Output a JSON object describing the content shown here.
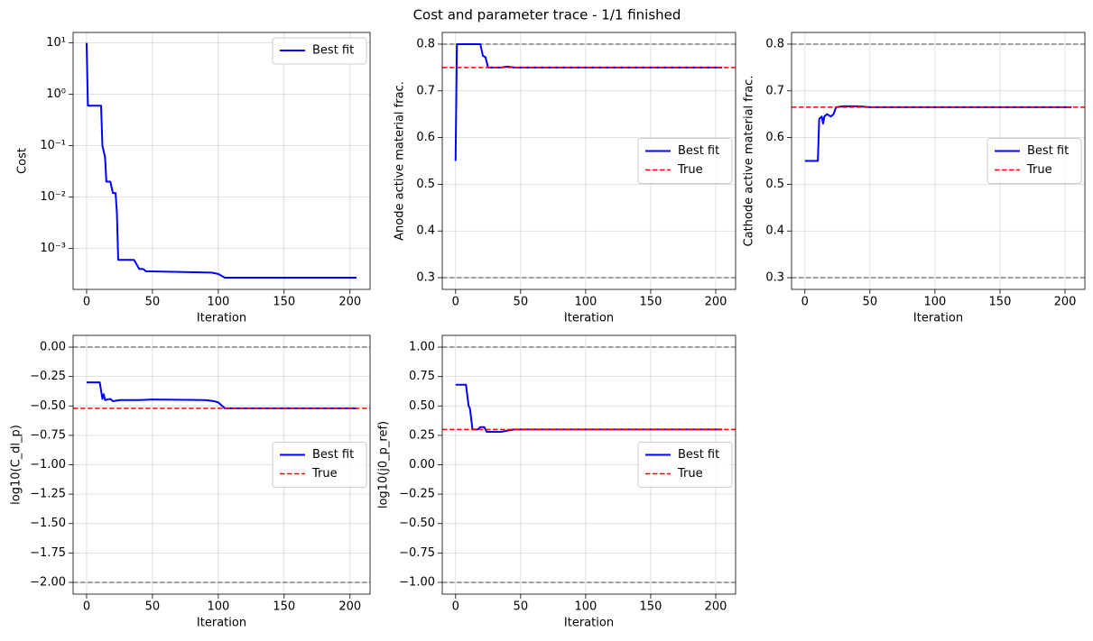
{
  "title": "Cost and parameter trace - 1/1 finished",
  "chart_data": [
    {
      "type": "line",
      "xlabel": "Iteration",
      "ylabel": "Cost",
      "log_y": true,
      "grid": true,
      "legend": "upper right",
      "xlim": [
        -10.25,
        215.25
      ],
      "xticks": [
        0,
        50,
        100,
        150,
        200
      ],
      "ylim": [
        0.00016,
        16
      ],
      "yticks": [
        {
          "value": 0.001,
          "label": "10⁻³"
        },
        {
          "value": 0.01,
          "label": "10⁻²"
        },
        {
          "value": 0.1,
          "label": "10⁻¹"
        },
        {
          "value": 1,
          "label": "10⁰"
        },
        {
          "value": 10,
          "label": "10¹"
        }
      ],
      "series": [
        {
          "name": "Best fit",
          "color": "#0000ff",
          "x": [
            0,
            1,
            11,
            12,
            14,
            15,
            18,
            20,
            22,
            23,
            24,
            36,
            40,
            43,
            45,
            95,
            100,
            105,
            205
          ],
          "values": [
            10,
            0.6,
            0.6,
            0.1,
            0.06,
            0.02,
            0.02,
            0.012,
            0.012,
            0.005,
            0.0006,
            0.0006,
            0.0004,
            0.0004,
            0.00036,
            0.00034,
            0.00032,
            0.00027,
            0.00027
          ]
        }
      ]
    },
    {
      "type": "line",
      "xlabel": "Iteration",
      "ylabel": "Anode active material frac.",
      "grid": true,
      "legend": "center right",
      "xlim": [
        -10.25,
        215.25
      ],
      "xticks": [
        0,
        50,
        100,
        150,
        200
      ],
      "ylim": [
        0.275,
        0.825
      ],
      "yticks": [
        0.3,
        0.4,
        0.5,
        0.6,
        0.7,
        0.8
      ],
      "bounds": [
        0.3,
        0.8
      ],
      "bounds_color": "#808080",
      "series": [
        {
          "name": "Best fit",
          "color": "#0000ff",
          "x": [
            0,
            1,
            19,
            21,
            23,
            25,
            35,
            40,
            45,
            205
          ],
          "values": [
            0.55,
            0.8,
            0.8,
            0.775,
            0.772,
            0.75,
            0.75,
            0.752,
            0.75,
            0.75
          ]
        },
        {
          "name": "True",
          "color": "#ff0000",
          "value": 0.75
        }
      ]
    },
    {
      "type": "line",
      "xlabel": "Iteration",
      "ylabel": "Cathode active material frac.",
      "grid": true,
      "legend": "center right",
      "xlim": [
        -10.25,
        215.25
      ],
      "xticks": [
        0,
        50,
        100,
        150,
        200
      ],
      "ylim": [
        0.275,
        0.825
      ],
      "yticks": [
        0.3,
        0.4,
        0.5,
        0.6,
        0.7,
        0.8
      ],
      "bounds": [
        0.3,
        0.8
      ],
      "bounds_color": "#808080",
      "series": [
        {
          "name": "Best fit",
          "color": "#0000ff",
          "x": [
            0,
            10,
            11,
            13,
            14,
            15,
            17,
            20,
            22,
            24,
            30,
            40,
            50,
            205
          ],
          "values": [
            0.55,
            0.55,
            0.64,
            0.645,
            0.63,
            0.645,
            0.65,
            0.645,
            0.65,
            0.665,
            0.667,
            0.667,
            0.665,
            0.665
          ]
        },
        {
          "name": "True",
          "color": "#ff0000",
          "value": 0.665
        }
      ]
    },
    {
      "type": "line",
      "xlabel": "Iteration",
      "ylabel": "log10(C_dl_p)",
      "grid": true,
      "legend": "center right",
      "xlim": [
        -10.25,
        215.25
      ],
      "xticks": [
        0,
        50,
        100,
        150,
        200
      ],
      "ylim": [
        -2.1,
        0.1
      ],
      "yticks": [
        {
          "value": -2,
          "label": "−2.00"
        },
        {
          "value": -1.75,
          "label": "−1.75"
        },
        {
          "value": -1.5,
          "label": "−1.50"
        },
        {
          "value": -1.25,
          "label": "−1.25"
        },
        {
          "value": -1,
          "label": "−1.00"
        },
        {
          "value": -0.75,
          "label": "−0.75"
        },
        {
          "value": -0.5,
          "label": "−0.50"
        },
        {
          "value": -0.25,
          "label": "−0.25"
        },
        {
          "value": 0,
          "label": "0.00"
        }
      ],
      "bounds": [
        -2,
        0
      ],
      "bounds_color": "#808080",
      "series": [
        {
          "name": "Best fit",
          "color": "#0000ff",
          "x": [
            0,
            10,
            12,
            13,
            14,
            18,
            20,
            25,
            40,
            50,
            90,
            97,
            100,
            105,
            205
          ],
          "values": [
            -0.3,
            -0.3,
            -0.44,
            -0.4,
            -0.45,
            -0.44,
            -0.46,
            -0.45,
            -0.45,
            -0.445,
            -0.45,
            -0.46,
            -0.47,
            -0.52,
            -0.52
          ]
        },
        {
          "name": "True",
          "color": "#ff0000",
          "value": -0.52
        }
      ]
    },
    {
      "type": "line",
      "xlabel": "Iteration",
      "ylabel": "log10(j0_p_ref)",
      "grid": true,
      "legend": "center right",
      "xlim": [
        -10.25,
        215.25
      ],
      "xticks": [
        0,
        50,
        100,
        150,
        200
      ],
      "ylim": [
        -1.1,
        1.1
      ],
      "yticks": [
        {
          "value": -1,
          "label": "−1.00"
        },
        {
          "value": -0.75,
          "label": "−0.75"
        },
        {
          "value": -0.5,
          "label": "−0.50"
        },
        {
          "value": -0.25,
          "label": "−0.25"
        },
        {
          "value": 0,
          "label": "0.00"
        },
        {
          "value": 0.25,
          "label": "0.25"
        },
        {
          "value": 0.5,
          "label": "0.50"
        },
        {
          "value": 0.75,
          "label": "0.75"
        },
        {
          "value": 1,
          "label": "1.00"
        }
      ],
      "bounds": [
        -1,
        1
      ],
      "bounds_color": "#808080",
      "series": [
        {
          "name": "Best fit",
          "color": "#0000ff",
          "x": [
            0,
            8,
            10,
            11,
            13,
            15,
            17,
            19,
            22,
            24,
            35,
            40,
            45,
            205
          ],
          "values": [
            0.68,
            0.68,
            0.5,
            0.48,
            0.3,
            0.3,
            0.3,
            0.32,
            0.32,
            0.28,
            0.28,
            0.29,
            0.3,
            0.3
          ]
        },
        {
          "name": "True",
          "color": "#ff0000",
          "value": 0.3
        }
      ]
    }
  ]
}
